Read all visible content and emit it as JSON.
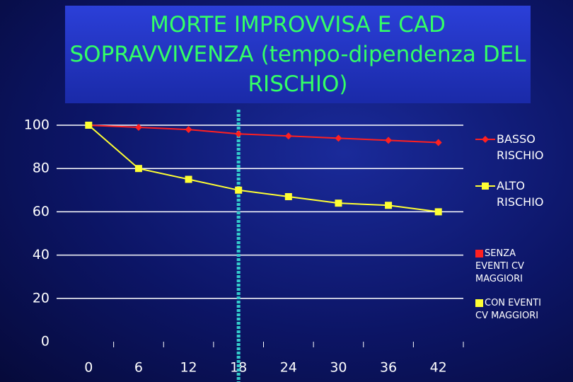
{
  "chart_data": {
    "type": "line",
    "title": "MORTE IMPROVVISA E CAD SOPRAVVIVENZA (tempo-dipendenza DEL RISCHIO)",
    "categories": [
      "0",
      "6",
      "12",
      "18",
      "24",
      "30",
      "36",
      "42"
    ],
    "series": [
      {
        "name": "BASSO RISCHIO",
        "color": "#ff2020",
        "marker": "diamond",
        "values": [
          100,
          99,
          98,
          96,
          95,
          94,
          93,
          92
        ]
      },
      {
        "name": "ALTO RISCHIO",
        "color": "#ffff33",
        "marker": "square",
        "values": [
          100,
          80,
          75,
          70,
          67,
          64,
          63,
          60
        ]
      }
    ],
    "ylim": [
      0,
      100
    ],
    "yticks": [
      0,
      20,
      40,
      60,
      80,
      100
    ],
    "grid": true,
    "reference_line": {
      "category": "18",
      "color": "#33cccc"
    },
    "annotations": [
      {
        "text": "SENZA EVENTI CV MAGGIORI",
        "color": "#ff2020"
      },
      {
        "text": "CON EVENTI CV MAGGIORI",
        "color": "#ffff33"
      }
    ],
    "legend": "right"
  }
}
